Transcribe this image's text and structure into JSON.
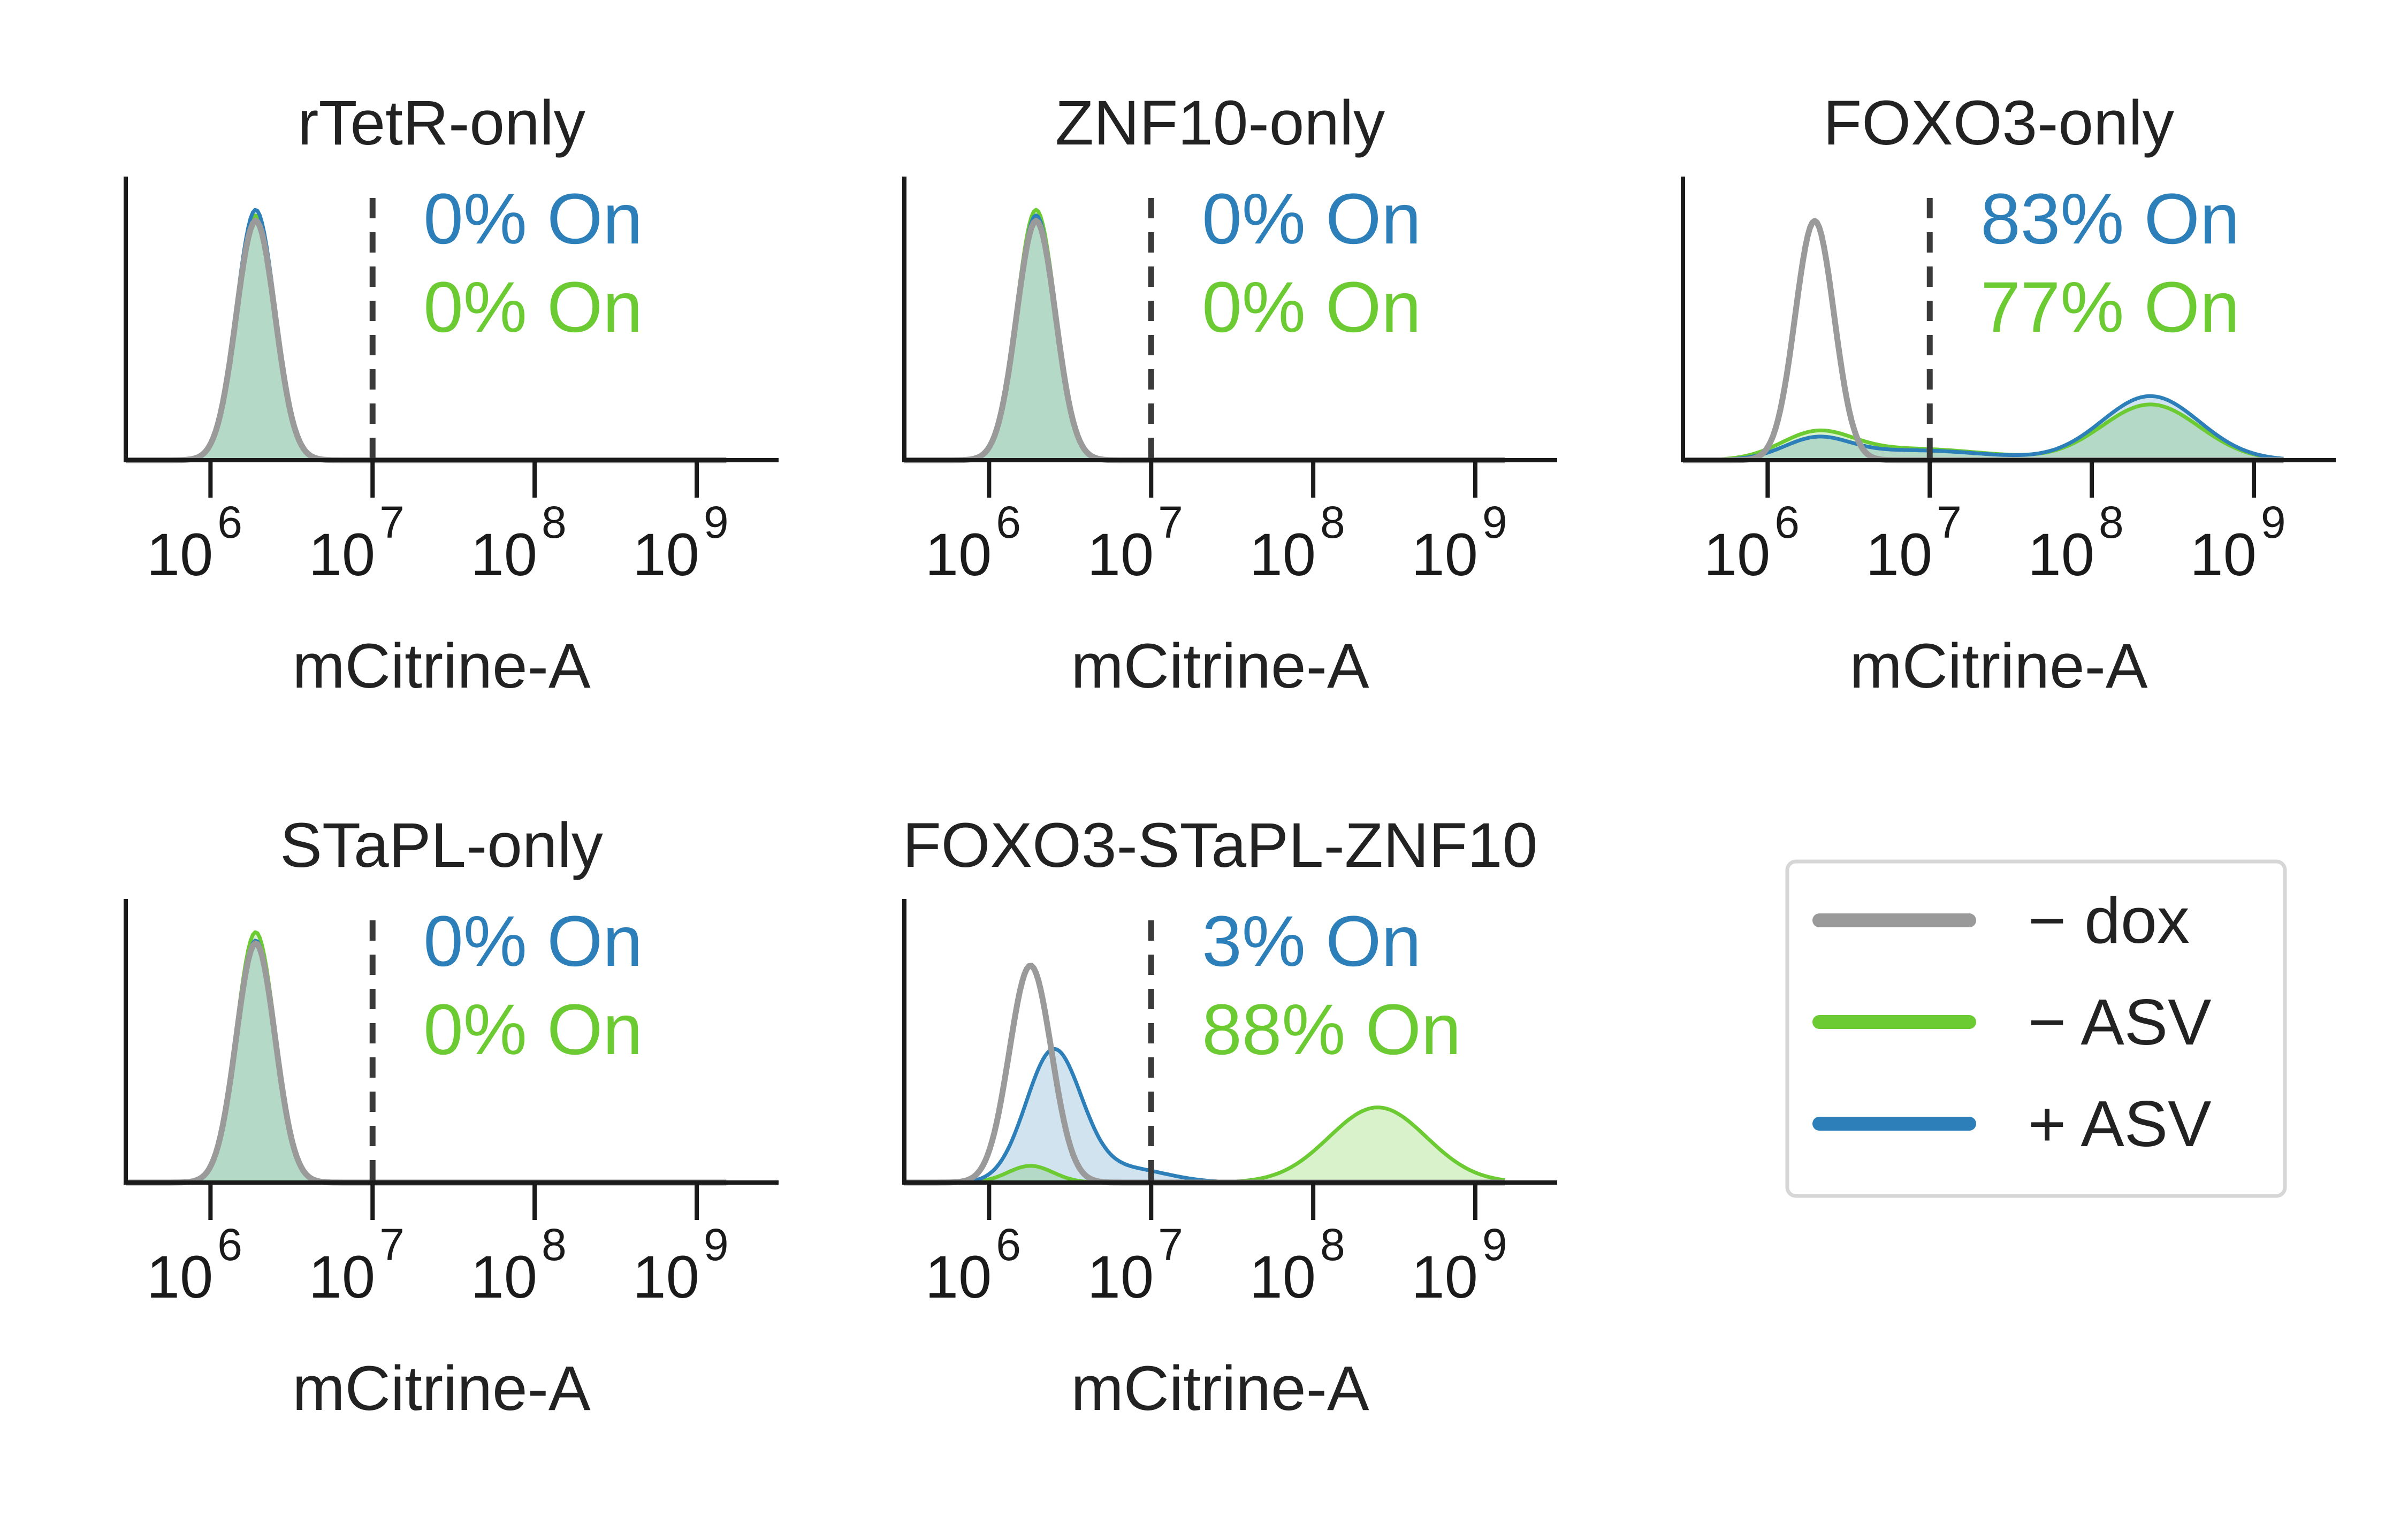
{
  "colors": {
    "axis": "#1a1a1a",
    "threshold": "#3a3a3a",
    "no_dox": "#9a9a9a",
    "minus_asv": "#6ccb33",
    "plus_asv": "#2c7fb8",
    "overlap_fill": "#b3dbb9",
    "title_text": "#222222"
  },
  "legend": {
    "placement": "right",
    "entries": [
      {
        "key": "no_dox",
        "label": "− dox"
      },
      {
        "key": "minus_asv",
        "label": "− ASV"
      },
      {
        "key": "plus_asv",
        "label": "+ ASV"
      }
    ]
  },
  "chart_data": [
    {
      "type": "area",
      "title": "rTetR-only",
      "xlabel": "mCitrine-A",
      "x_scale": "log10",
      "xlim": [
        300000,
        3200000000
      ],
      "x_ticks": [
        1000000,
        10000000,
        100000000,
        1000000000
      ],
      "threshold_x": 10000000,
      "annotations": [
        {
          "key": "plus_asv",
          "text": "0% On"
        },
        {
          "key": "minus_asv",
          "text": "0% On"
        }
      ],
      "series": [
        {
          "key": "no_dox",
          "peaks": [
            {
              "x": 1900000,
              "height": 0.86,
              "width": 0.12
            }
          ]
        },
        {
          "key": "minus_asv",
          "peaks": [
            {
              "x": 1900000,
              "height": 0.88,
              "width": 0.12
            }
          ]
        },
        {
          "key": "plus_asv",
          "peaks": [
            {
              "x": 1900000,
              "height": 0.9,
              "width": 0.12
            }
          ]
        }
      ]
    },
    {
      "type": "area",
      "title": "ZNF10-only",
      "xlabel": "mCitrine-A",
      "x_scale": "log10",
      "xlim": [
        300000,
        3200000000
      ],
      "x_ticks": [
        1000000,
        10000000,
        100000000,
        1000000000
      ],
      "threshold_x": 10000000,
      "annotations": [
        {
          "key": "plus_asv",
          "text": "0% On"
        },
        {
          "key": "minus_asv",
          "text": "0% On"
        }
      ],
      "series": [
        {
          "key": "no_dox",
          "peaks": [
            {
              "x": 1950000,
              "height": 0.86,
              "width": 0.12
            }
          ]
        },
        {
          "key": "minus_asv",
          "peaks": [
            {
              "x": 1950000,
              "height": 0.9,
              "width": 0.12
            }
          ]
        },
        {
          "key": "plus_asv",
          "peaks": [
            {
              "x": 1950000,
              "height": 0.88,
              "width": 0.12
            }
          ]
        }
      ]
    },
    {
      "type": "area",
      "title": "FOXO3-only",
      "xlabel": "mCitrine-A",
      "x_scale": "log10",
      "xlim": [
        300000,
        3200000000
      ],
      "x_ticks": [
        1000000,
        10000000,
        100000000,
        1000000000
      ],
      "threshold_x": 10000000,
      "annotations": [
        {
          "key": "plus_asv",
          "text": "83% On"
        },
        {
          "key": "minus_asv",
          "text": "77% On"
        }
      ],
      "series": [
        {
          "key": "no_dox",
          "peaks": [
            {
              "x": 1950000,
              "height": 0.86,
              "width": 0.12
            }
          ]
        },
        {
          "key": "minus_asv",
          "peaks": [
            {
              "x": 2000000,
              "height": 0.09,
              "width": 0.22
            },
            {
              "x": 8000000,
              "height": 0.04,
              "width": 0.45
            },
            {
              "x": 230000000,
              "height": 0.2,
              "width": 0.3
            }
          ]
        },
        {
          "key": "plus_asv",
          "peaks": [
            {
              "x": 2000000,
              "height": 0.07,
              "width": 0.2
            },
            {
              "x": 8000000,
              "height": 0.035,
              "width": 0.45
            },
            {
              "x": 230000000,
              "height": 0.23,
              "width": 0.3
            }
          ]
        }
      ]
    },
    {
      "type": "area",
      "title": "STaPL-only",
      "xlabel": "mCitrine-A",
      "x_scale": "log10",
      "xlim": [
        300000,
        3200000000
      ],
      "x_ticks": [
        1000000,
        10000000,
        100000000,
        1000000000
      ],
      "threshold_x": 10000000,
      "annotations": [
        {
          "key": "plus_asv",
          "text": "0% On"
        },
        {
          "key": "minus_asv",
          "text": "0% On"
        }
      ],
      "series": [
        {
          "key": "no_dox",
          "peaks": [
            {
              "x": 1900000,
              "height": 0.86,
              "width": 0.12
            }
          ]
        },
        {
          "key": "minus_asv",
          "peaks": [
            {
              "x": 1900000,
              "height": 0.9,
              "width": 0.12
            }
          ]
        },
        {
          "key": "plus_asv",
          "peaks": [
            {
              "x": 1900000,
              "height": 0.87,
              "width": 0.12
            }
          ]
        }
      ]
    },
    {
      "type": "area",
      "title": "FOXO3-STaPL-ZNF10",
      "xlabel": "mCitrine-A",
      "x_scale": "log10",
      "xlim": [
        300000,
        3200000000
      ],
      "x_ticks": [
        1000000,
        10000000,
        100000000,
        1000000000
      ],
      "threshold_x": 10000000,
      "annotations": [
        {
          "key": "plus_asv",
          "text": "3% On"
        },
        {
          "key": "minus_asv",
          "text": "88% On"
        }
      ],
      "series": [
        {
          "key": "no_dox",
          "peaks": [
            {
              "x": 1800000,
              "height": 0.78,
              "width": 0.13
            }
          ]
        },
        {
          "key": "plus_asv",
          "peaks": [
            {
              "x": 2500000,
              "height": 0.47,
              "width": 0.17
            },
            {
              "x": 7000000,
              "height": 0.05,
              "width": 0.25
            }
          ]
        },
        {
          "key": "minus_asv",
          "peaks": [
            {
              "x": 1800000,
              "height": 0.06,
              "width": 0.14
            },
            {
              "x": 250000000,
              "height": 0.27,
              "width": 0.3
            }
          ]
        }
      ]
    }
  ]
}
